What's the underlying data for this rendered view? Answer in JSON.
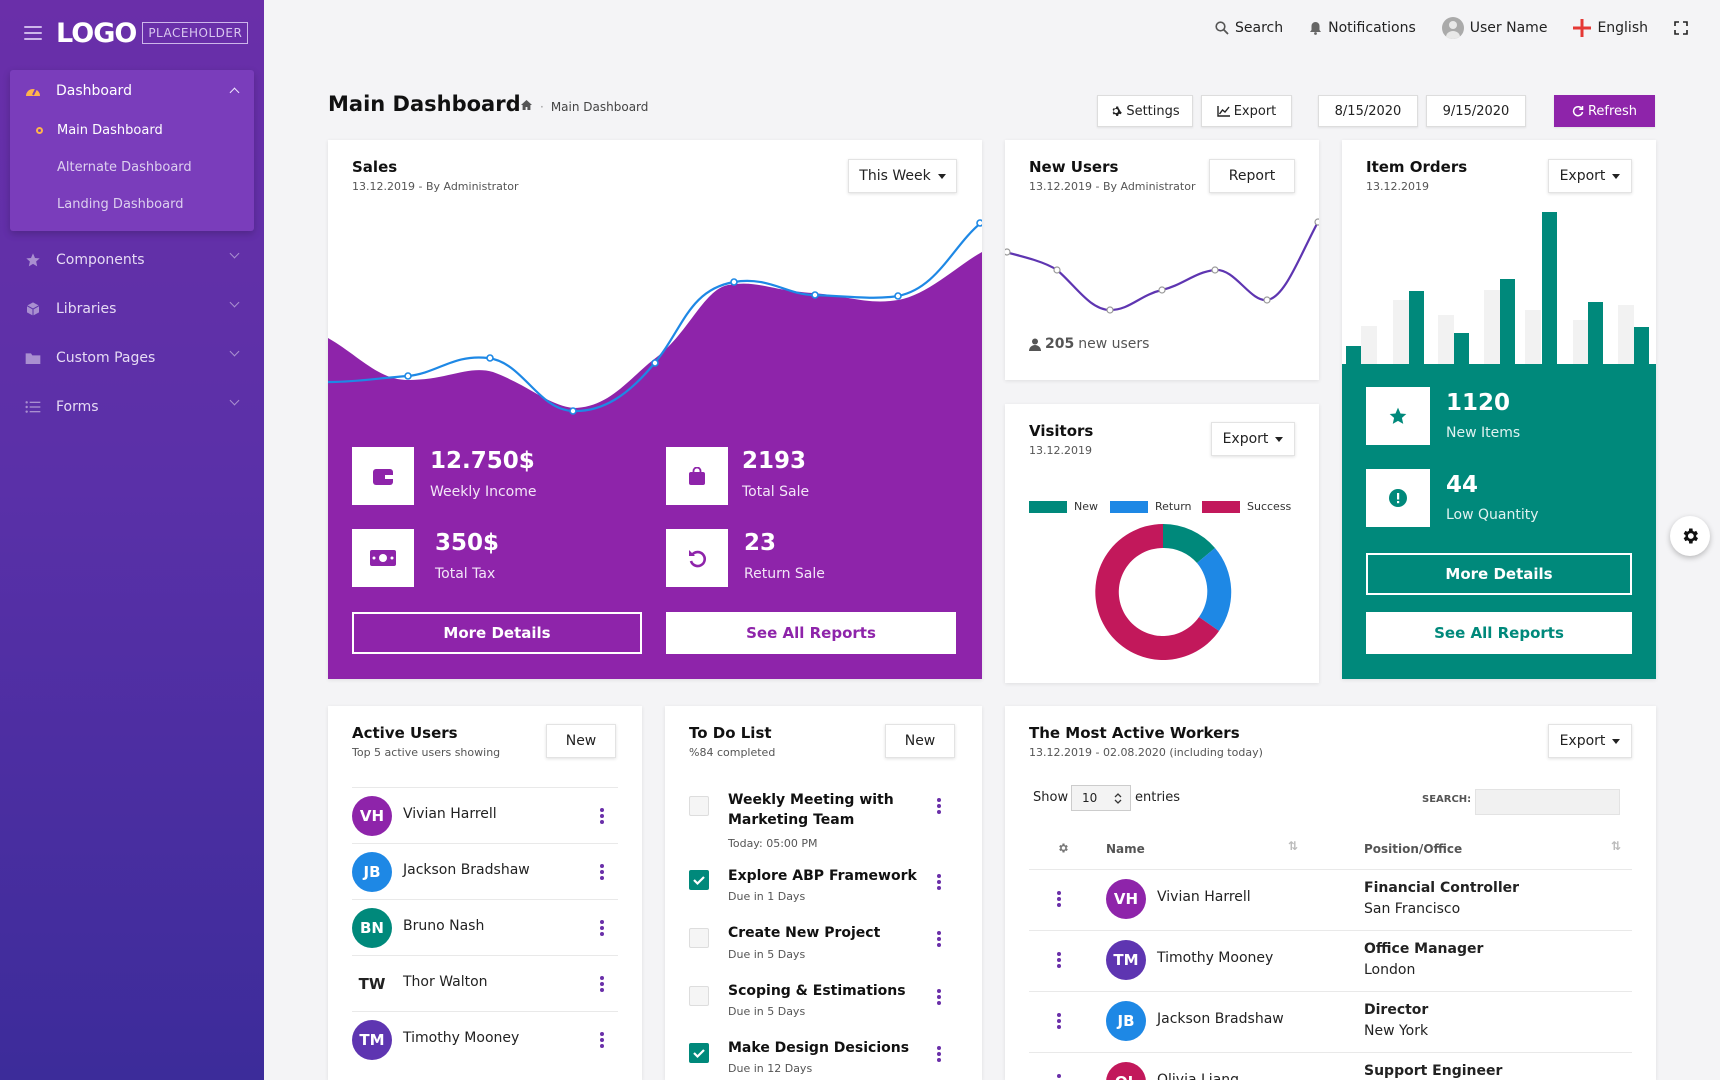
{
  "sidebar": {
    "logo": "LOGO",
    "logo_tag": "PLACEHOLDER",
    "dashboard_label": "Dashboard",
    "sub_items": [
      "Main Dashboard",
      "Alternate Dashboard",
      "Landing Dashboard"
    ],
    "menu": [
      "Components",
      "Libraries",
      "Custom Pages",
      "Forms"
    ]
  },
  "topbar": {
    "search": "Search",
    "notifications": "Notifications",
    "user": "User Name",
    "language": "English"
  },
  "page": {
    "title": "Main Dashboard",
    "breadcrumb": "Main Dashboard",
    "settings": "Settings",
    "export": "Export",
    "date_from": "8/15/2020",
    "date_to": "9/15/2020",
    "refresh": "Refresh"
  },
  "sales": {
    "title": "Sales",
    "sub": "13.12.2019 - By Administrator",
    "range": "This Week",
    "weekly_income": "12.750$",
    "weekly_income_lbl": "Weekly Income",
    "total_sale": "2193",
    "total_sale_lbl": "Total Sale",
    "total_tax": "350$",
    "total_tax_lbl": "Total Tax",
    "return_sale": "23",
    "return_sale_lbl": "Return Sale",
    "more": "More Details",
    "reports": "See All Reports"
  },
  "new_users": {
    "title": "New Users",
    "sub": "13.12.2019 - By Administrator",
    "btn": "Report",
    "count": "205",
    "count_lbl": "new users"
  },
  "visitors": {
    "title": "Visitors",
    "sub": "13.12.2019",
    "btn": "Export",
    "legend": [
      {
        "name": "New",
        "color": "#00897b"
      },
      {
        "name": "Return",
        "color": "#1e88e5"
      },
      {
        "name": "Success",
        "color": "#c2185b"
      }
    ]
  },
  "item_orders": {
    "title": "Item Orders",
    "sub": "13.12.2019",
    "btn": "Export",
    "new_items": "1120",
    "new_items_lbl": "New Items",
    "low_qty": "44",
    "low_qty_lbl": "Low Quantity",
    "more": "More Details",
    "reports": "See All Reports"
  },
  "active_users": {
    "title": "Active Users",
    "sub": "Top 5 active users showing",
    "btn": "New",
    "users": [
      {
        "initials": "VH",
        "name": "Vivian Harrell",
        "color": "#8e24aa"
      },
      {
        "initials": "JB",
        "name": "Jackson Bradshaw",
        "color": "#1e88e5"
      },
      {
        "initials": "BN",
        "name": "Bruno Nash",
        "color": "#00897b"
      },
      {
        "initials": "TW",
        "name": "Thor Walton",
        "color": "#ffffff"
      },
      {
        "initials": "TM",
        "name": "Timothy Mooney",
        "color": "#5e35b1"
      }
    ]
  },
  "todo": {
    "title": "To Do List",
    "sub": "%84 completed",
    "btn": "New",
    "items": [
      {
        "title": "Weekly Meeting with Marketing Team",
        "due": "Today: 05:00 PM",
        "done": false
      },
      {
        "title": "Explore ABP Framework",
        "due": "Due in 1 Days",
        "done": true
      },
      {
        "title": "Create New Project",
        "due": "Due in 5 Days",
        "done": false
      },
      {
        "title": "Scoping & Estimations",
        "due": "Due in 5 Days",
        "done": false
      },
      {
        "title": "Make Design Desicions",
        "due": "Due in 12 Days",
        "done": true
      }
    ]
  },
  "workers": {
    "title": "The Most Active Workers",
    "sub": "13.12.2019 - 02.08.2020 (including today)",
    "btn": "Export",
    "show": "Show",
    "entries_value": "10",
    "entries": "entries",
    "search_lbl": "SEARCH:",
    "col_name": "Name",
    "col_position": "Position/Office",
    "rows": [
      {
        "initials": "VH",
        "name": "Vivian Harrell",
        "position": "Financial Controller",
        "office": "San Francisco",
        "color": "#8e24aa"
      },
      {
        "initials": "TM",
        "name": "Timothy Mooney",
        "position": "Office Manager",
        "office": "London",
        "color": "#5e35b1"
      },
      {
        "initials": "JB",
        "name": "Jackson Bradshaw",
        "position": "Director",
        "office": "New York",
        "color": "#1e88e5"
      },
      {
        "initials": "OL",
        "name": "Olivia Liang",
        "position": "Support Engineer",
        "office": "",
        "color": "#c2185b"
      }
    ]
  },
  "colors": {
    "purple": "#8e24aa",
    "teal": "#00897b",
    "blue": "#1e88e5",
    "crimson": "#c2185b"
  }
}
